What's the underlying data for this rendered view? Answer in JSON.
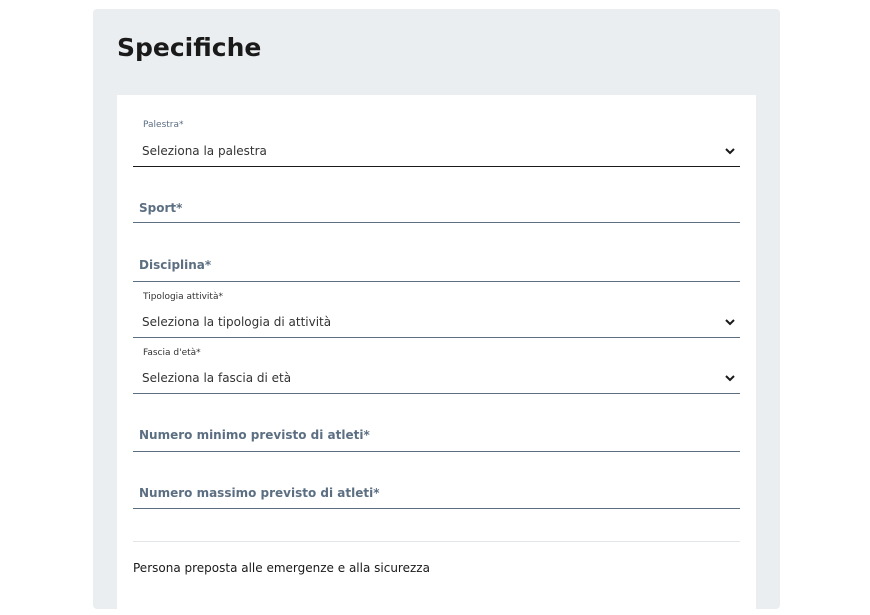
{
  "title": "Specifiche",
  "fields": {
    "palestra": {
      "label": "Palestra*",
      "value": "Seleziona la palestra"
    },
    "sport": {
      "label": "Sport*"
    },
    "disciplina": {
      "label": "Disciplina*"
    },
    "tipologia": {
      "label": "Tipologia attività*",
      "value": "Seleziona la tipologia di attività"
    },
    "fascia": {
      "label": "Fascia d'età*",
      "value": "Seleziona la fascia di età"
    },
    "min_atleti": {
      "label": "Numero minimo previsto di atleti*"
    },
    "max_atleti": {
      "label": "Numero massimo previsto di atleti*"
    }
  },
  "section_emergency": "Persona preposta alle emergenze e alla sicurezza"
}
